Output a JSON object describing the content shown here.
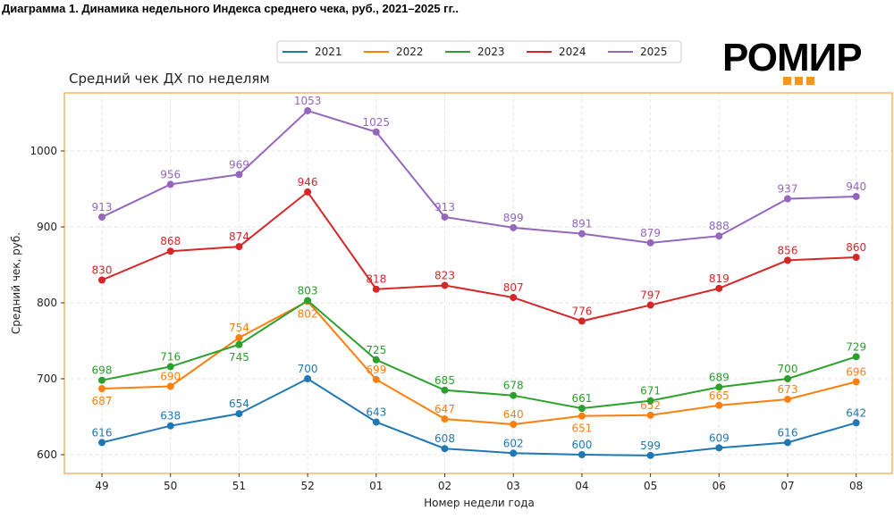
{
  "header": "Диаграмма 1. Динамика недельного Индекса среднего чека, руб., 2021–2025 гг..",
  "logo": "РОМИР",
  "chart_data": {
    "type": "line",
    "title": "Средний чек ДХ по неделям",
    "xlabel": "Номер недели года",
    "ylabel": "Средний чек, руб.",
    "categories": [
      "49",
      "50",
      "51",
      "52",
      "01",
      "02",
      "03",
      "04",
      "05",
      "06",
      "07",
      "08"
    ],
    "ylim": [
      575,
      1075
    ],
    "yticks": [
      600,
      700,
      800,
      900,
      1000
    ],
    "grid": true,
    "legend": "top",
    "series": [
      {
        "name": "2021",
        "color": "#1f77b4",
        "values": [
          616,
          638,
          654,
          700,
          643,
          608,
          602,
          600,
          599,
          609,
          616,
          642
        ]
      },
      {
        "name": "2022",
        "color": "#ff7f0e",
        "values": [
          687,
          690,
          754,
          802,
          699,
          647,
          640,
          651,
          652,
          665,
          673,
          696
        ]
      },
      {
        "name": "2023",
        "color": "#2ca02c",
        "values": [
          698,
          716,
          745,
          803,
          725,
          685,
          678,
          661,
          671,
          689,
          700,
          729
        ]
      },
      {
        "name": "2024",
        "color": "#d62728",
        "values": [
          830,
          868,
          874,
          946,
          818,
          823,
          807,
          776,
          797,
          819,
          856,
          860
        ]
      },
      {
        "name": "2025",
        "color": "#9467bd",
        "values": [
          913,
          956,
          969,
          1053,
          1025,
          913,
          899,
          891,
          879,
          888,
          937,
          940
        ]
      }
    ]
  }
}
